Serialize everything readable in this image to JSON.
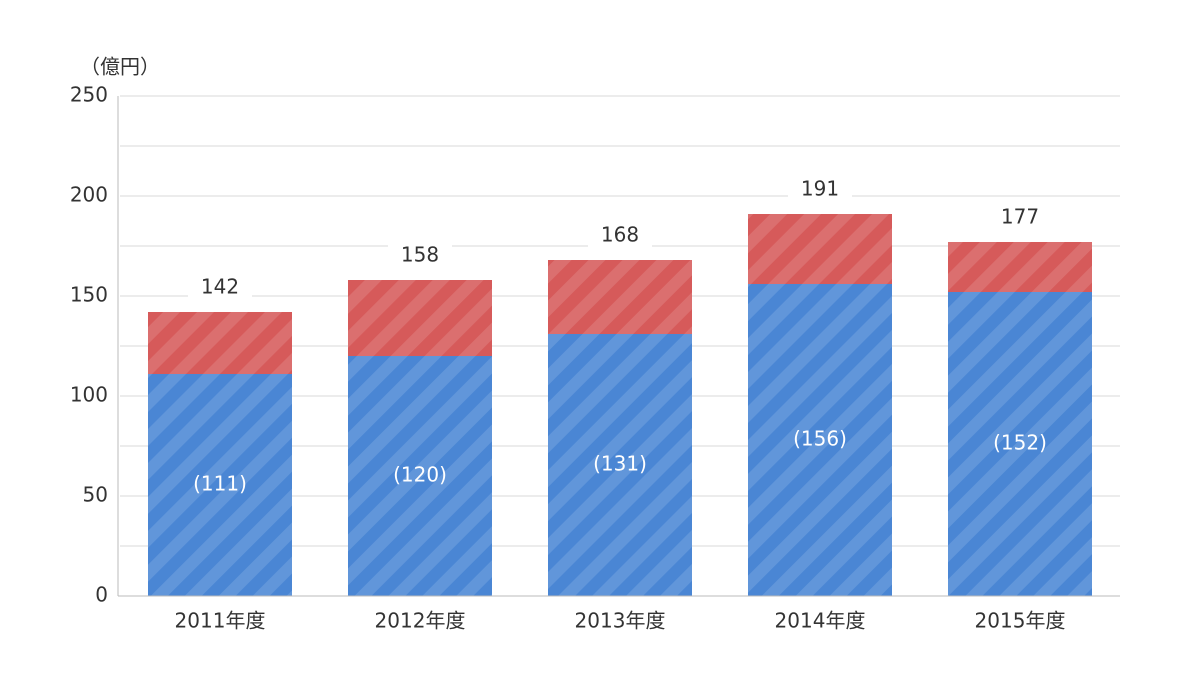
{
  "chart_data": {
    "type": "stacked_bar",
    "unit_label": "（億円）",
    "categories": [
      "2011年度",
      "2012年度",
      "2013年度",
      "2014年度",
      "2015年度"
    ],
    "series": [
      {
        "color": "#4a86d4",
        "values": [
          111,
          120,
          131,
          156,
          152
        ],
        "value_labels": [
          "(111)",
          "(120)",
          "(131)",
          "(156)",
          "(152)"
        ]
      },
      {
        "color": "#d65a5a",
        "values": [
          31,
          38,
          37,
          35,
          25
        ]
      }
    ],
    "totals": [
      142,
      158,
      168,
      191,
      177
    ],
    "ylim": [
      0,
      250
    ],
    "yticks": [
      0,
      50,
      100,
      150,
      200,
      250
    ],
    "minor_yticks": [
      25,
      75,
      125,
      175,
      225
    ],
    "grid": true
  }
}
